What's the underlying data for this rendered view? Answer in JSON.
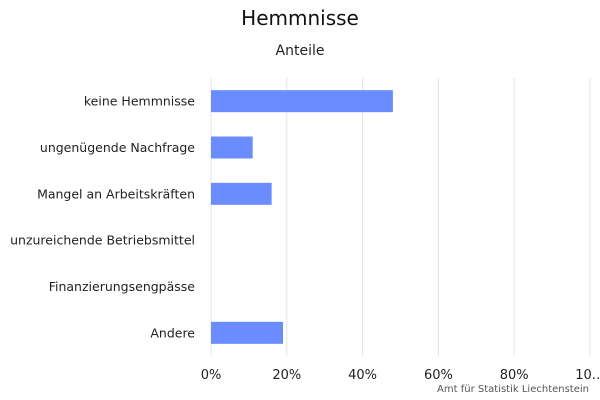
{
  "chart_data": {
    "type": "bar",
    "orientation": "horizontal",
    "title": "Hemmnisse",
    "subtitle": "Anteile",
    "categories": [
      "keine Hemmnisse",
      "ungenügende Nachfrage",
      "Mangel an Arbeitskräften",
      "unzureichende Betriebsmittel",
      "Finanzierungsengpässe",
      "Andere"
    ],
    "values": [
      48,
      11,
      16,
      0,
      0,
      19
    ],
    "value_unit": "%",
    "xlim": [
      0,
      100
    ],
    "x_ticks": [
      "0%",
      "20%",
      "40%",
      "60%",
      "80%",
      "10…"
    ],
    "grid": "vertical",
    "bar_color": "#6b8cff",
    "grid_color": "#e4e4ec",
    "credit": "Amt für Statistik Liechtenstein"
  }
}
